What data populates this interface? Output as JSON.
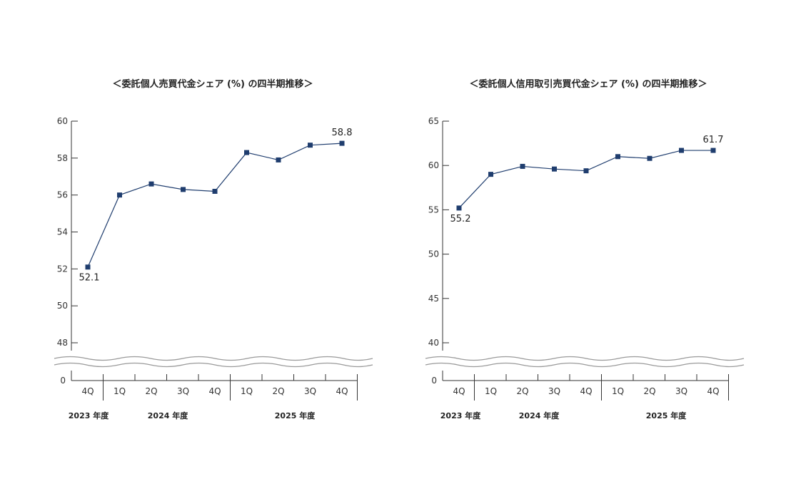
{
  "chart_data": [
    {
      "type": "line",
      "title": "＜委託個人売買代金シェア (%) の四半期推移＞",
      "categories": [
        "4Q",
        "1Q",
        "2Q",
        "3Q",
        "4Q",
        "1Q",
        "2Q",
        "3Q",
        "4Q"
      ],
      "year_labels": [
        "2023 年度",
        "2024 年度",
        "2025 年度"
      ],
      "series": [
        {
          "values": [
            52.1,
            56.0,
            56.6,
            56.3,
            56.2,
            58.3,
            57.9,
            58.7,
            58.8
          ]
        }
      ],
      "yticks": [
        "60",
        "58",
        "56",
        "54",
        "52",
        "50",
        "48"
      ],
      "y_zero_label": "0",
      "ylim": [
        48,
        60
      ],
      "axis_break": true,
      "data_labels": [
        {
          "index": 0,
          "text": "52.1",
          "position": "below"
        },
        {
          "index": 8,
          "text": "58.8",
          "position": "above"
        }
      ]
    },
    {
      "type": "line",
      "title": "＜委託個人信用取引売買代金シェア (%) の四半期推移＞",
      "categories": [
        "4Q",
        "1Q",
        "2Q",
        "3Q",
        "4Q",
        "1Q",
        "2Q",
        "3Q",
        "4Q"
      ],
      "year_labels": [
        "2023 年度",
        "2024 年度",
        "2025 年度"
      ],
      "series": [
        {
          "values": [
            55.2,
            59.0,
            59.9,
            59.6,
            59.4,
            61.0,
            60.8,
            61.7,
            61.7
          ]
        }
      ],
      "yticks": [
        "65",
        "60",
        "55",
        "50",
        "45",
        "40"
      ],
      "y_zero_label": "0",
      "ylim": [
        40,
        65
      ],
      "axis_break": true,
      "data_labels": [
        {
          "index": 0,
          "text": "55.2",
          "position": "below"
        },
        {
          "index": 8,
          "text": "61.7",
          "position": "above"
        }
      ]
    }
  ],
  "colors": {
    "line": "#1f3d6e",
    "marker": "#1f3d6e",
    "axis": "#333333",
    "break": "#9a9a9a"
  }
}
